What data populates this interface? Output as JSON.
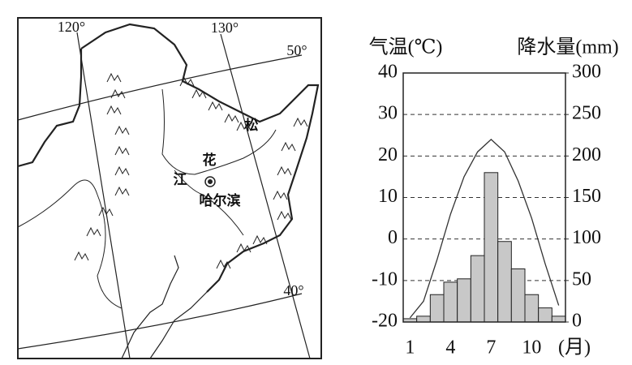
{
  "map": {
    "labels": [
      "120°",
      "130°",
      "50°",
      "40°",
      "花",
      "江",
      "松",
      "哈尔滨"
    ]
  },
  "chart_data": {
    "type": "combo",
    "y_label": "气温(℃)",
    "y2_label": "降水量(mm)",
    "categories": [
      "1",
      null,
      null,
      "4",
      null,
      null,
      "7",
      null,
      null,
      "10",
      null,
      null
    ],
    "x_unit": "(月)",
    "ylim": [
      -20,
      40
    ],
    "yticks": [
      -20,
      -10,
      0,
      10,
      20,
      30,
      40
    ],
    "y2lim": [
      0,
      300
    ],
    "y2ticks": [
      0,
      50,
      100,
      150,
      200,
      250,
      300
    ],
    "grid": true,
    "series": [
      {
        "type": "line",
        "color": "#333333",
        "values": [
          -19,
          -15,
          -5,
          6,
          15,
          21,
          24,
          21,
          14,
          5,
          -6,
          -16
        ]
      },
      {
        "type": "bar",
        "axis": "y2",
        "color": "#c8c8c8",
        "values": [
          4,
          7,
          33,
          48,
          52,
          80,
          180,
          97,
          64,
          33,
          17,
          7
        ]
      }
    ]
  }
}
